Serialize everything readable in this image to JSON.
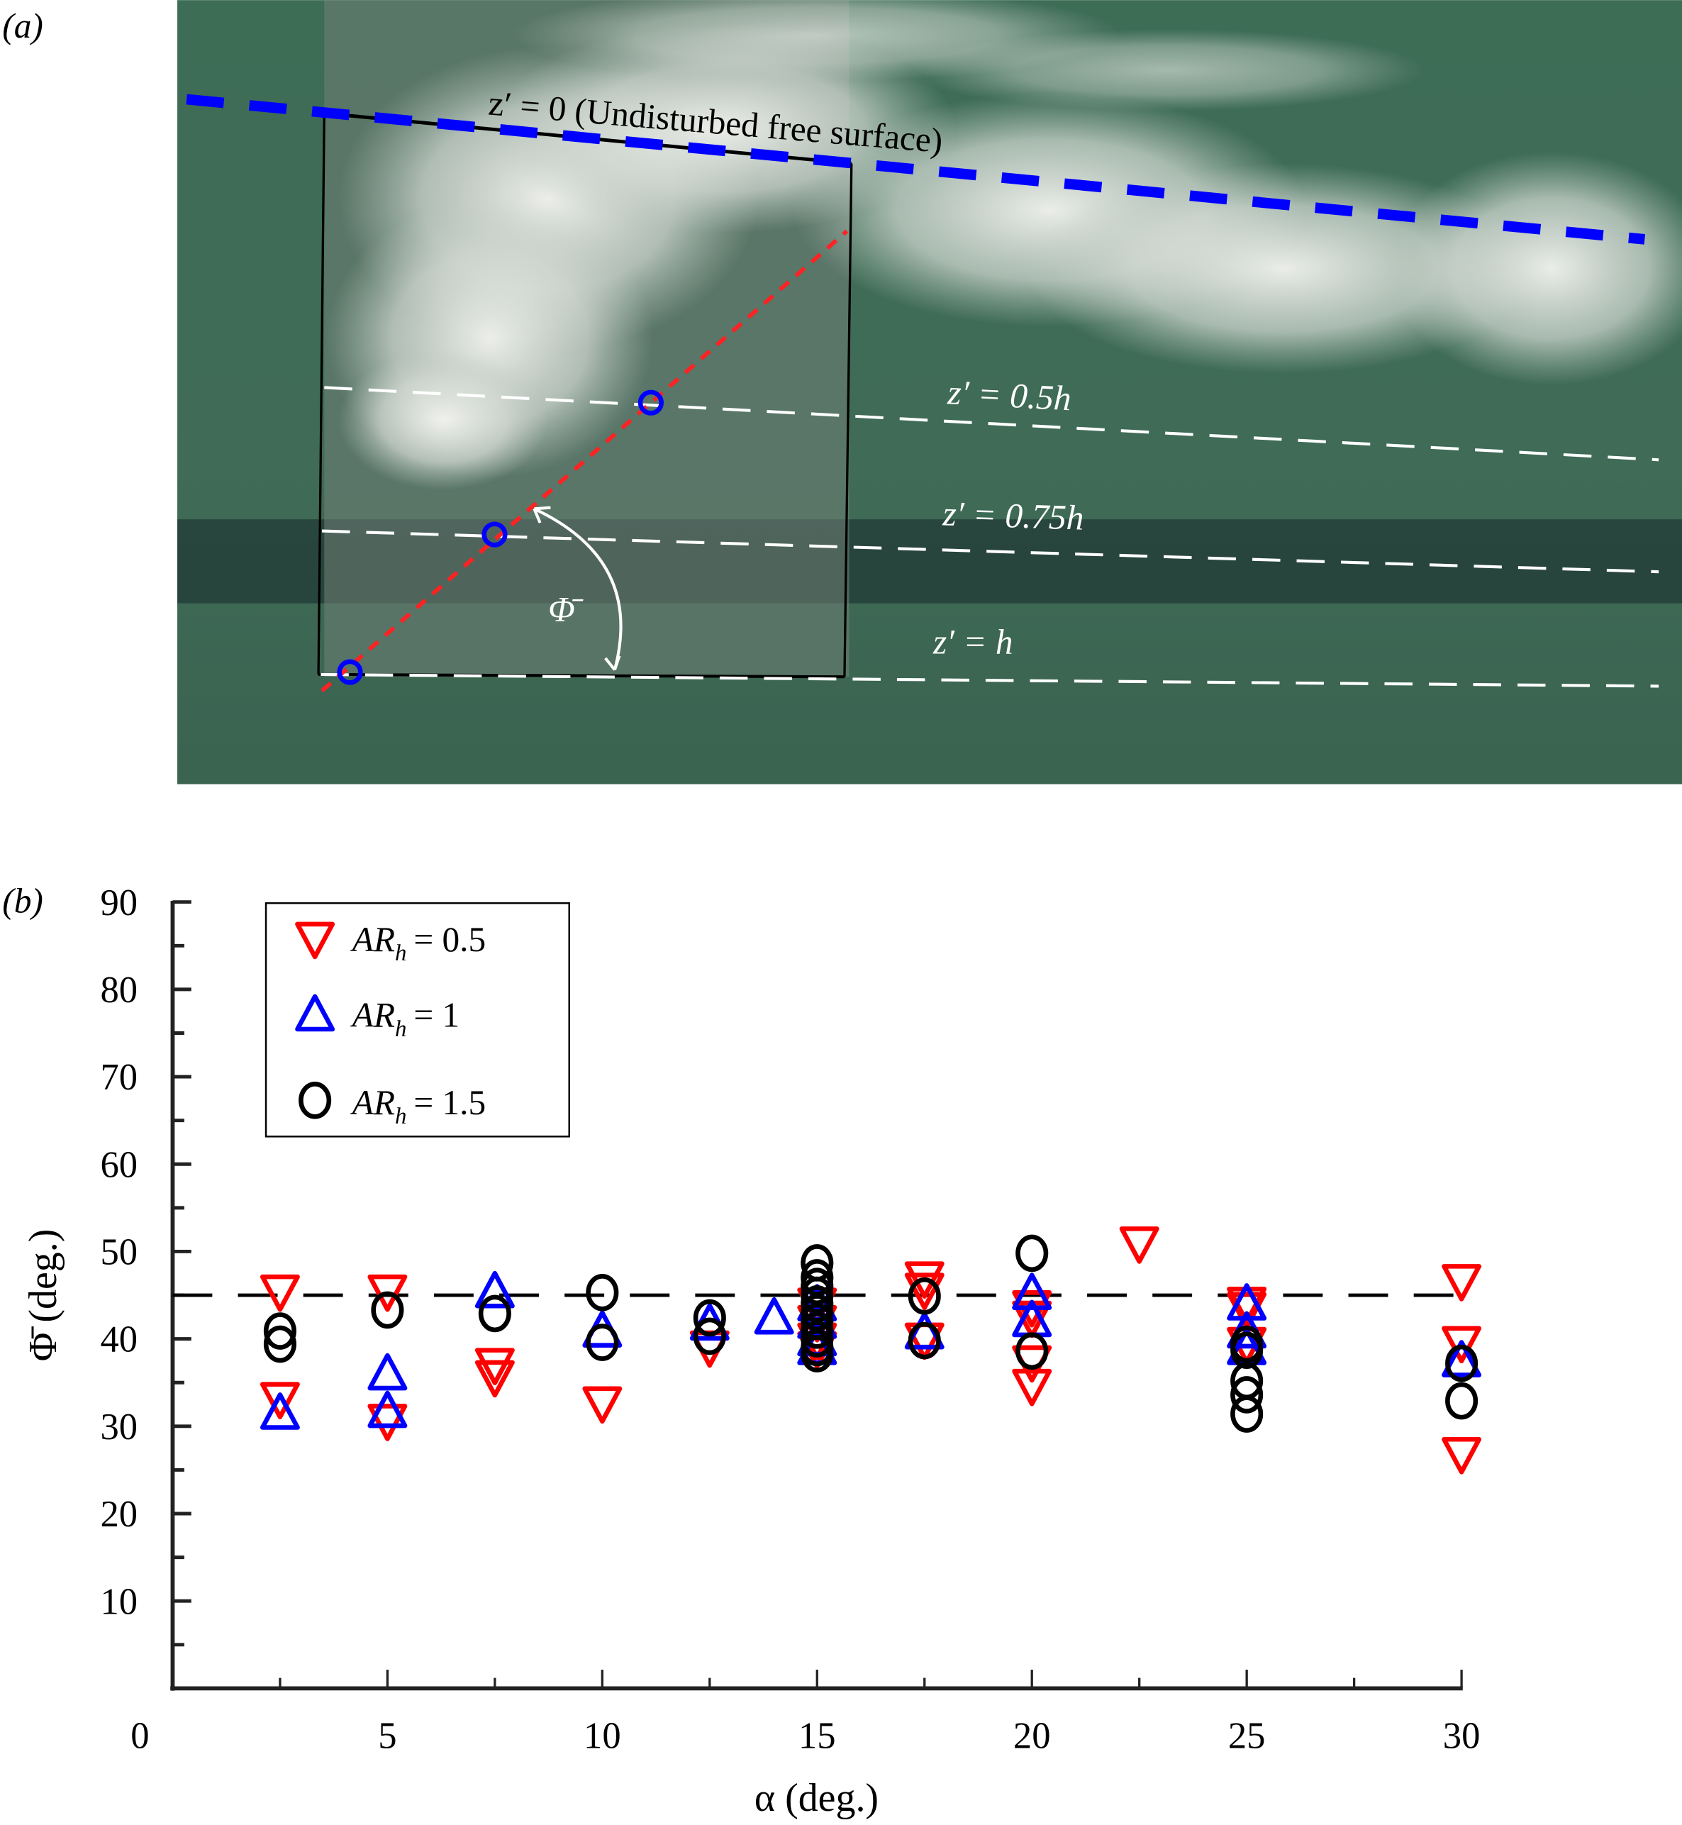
{
  "panel_a": {
    "label": "(a)",
    "annotations": {
      "surface": "z′ = 0 (Undisturbed  free  surface)",
      "z_half": "z′ = 0.5h",
      "z_three_quarter": "z′ = 0.75h",
      "z_full": "z′ = h",
      "angle": "Φ̄"
    },
    "colors": {
      "water": "#3f6a55",
      "surface_line": "#0000ff",
      "fit_line": "#ff0000",
      "depth_lines": "#ffffff",
      "points": "#0000ff"
    }
  },
  "panel_b": {
    "label": "(b)"
  },
  "chart_data": {
    "type": "scatter",
    "title": "",
    "xlabel": "α (deg.)",
    "ylabel": "Φ̄ (deg.)",
    "xlim": [
      0,
      30
    ],
    "ylim": [
      0,
      90
    ],
    "xticks": [
      0,
      5,
      10,
      15,
      20,
      25,
      30
    ],
    "yticks": [
      10,
      20,
      30,
      40,
      50,
      60,
      70,
      80,
      90
    ],
    "grid": false,
    "legend_position": "upper left",
    "reference_line": {
      "y": 45,
      "style": "dashed",
      "color": "#000000"
    },
    "series": [
      {
        "name": "AR_h = 0.5",
        "legend_label": "AR",
        "legend_sub": "h",
        "legend_value": "= 0.5",
        "marker": "triangle-down",
        "color": "#ff0000",
        "points": [
          [
            2.5,
            45.5
          ],
          [
            2.5,
            33.2
          ],
          [
            5,
            45.5
          ],
          [
            5,
            30.7
          ],
          [
            7.5,
            37.1
          ],
          [
            7.5,
            35.7
          ],
          [
            10,
            32.7
          ],
          [
            12.5,
            39.1
          ],
          [
            15,
            44
          ],
          [
            15,
            42
          ],
          [
            15,
            40
          ],
          [
            15,
            39
          ],
          [
            17.5,
            47.0
          ],
          [
            17.5,
            45.7
          ],
          [
            17.5,
            40.0
          ],
          [
            20,
            43.7
          ],
          [
            20,
            42.5
          ],
          [
            20,
            37.4
          ],
          [
            20,
            34.7
          ],
          [
            22.5,
            51.0
          ],
          [
            25,
            44.1
          ],
          [
            25,
            43.5
          ],
          [
            25,
            39.5
          ],
          [
            30,
            46.7
          ],
          [
            30,
            39.6
          ],
          [
            30,
            26.9
          ]
        ]
      },
      {
        "name": "AR_h = 1",
        "legend_label": "AR",
        "legend_sub": "h",
        "legend_value": "= 1",
        "marker": "triangle-up",
        "color": "#0000ff",
        "points": [
          [
            2.5,
            31.6
          ],
          [
            5,
            36.1
          ],
          [
            5,
            31.8
          ],
          [
            7.5,
            45.5
          ],
          [
            10,
            41.0
          ],
          [
            12.5,
            41.8
          ],
          [
            14,
            42.5
          ],
          [
            15,
            44
          ],
          [
            15,
            42
          ],
          [
            15,
            40
          ],
          [
            15,
            39
          ],
          [
            17.5,
            40.8
          ],
          [
            20,
            45.3
          ],
          [
            20,
            42.2
          ],
          [
            25,
            44.1
          ],
          [
            25,
            40.9
          ],
          [
            25,
            39.0
          ],
          [
            30,
            37.6
          ]
        ]
      },
      {
        "name": "AR_h = 1.5",
        "legend_label": "AR",
        "legend_sub": "h",
        "legend_value": "= 1.5",
        "marker": "circle",
        "color": "#000000",
        "points": [
          [
            2.5,
            40.9
          ],
          [
            2.5,
            39.4
          ],
          [
            5,
            43.3
          ],
          [
            7.5,
            42.9
          ],
          [
            10,
            45.3
          ],
          [
            10,
            39.6
          ],
          [
            12.5,
            42.4
          ],
          [
            12.5,
            40.3
          ],
          [
            15,
            48.7
          ],
          [
            15,
            47
          ],
          [
            15,
            46
          ],
          [
            15,
            45
          ],
          [
            15,
            44
          ],
          [
            15,
            43
          ],
          [
            15,
            42
          ],
          [
            15,
            41
          ],
          [
            15,
            40
          ],
          [
            15,
            39
          ],
          [
            15,
            38.3
          ],
          [
            17.5,
            44.9
          ],
          [
            17.5,
            39.8
          ],
          [
            20,
            49.8
          ],
          [
            20,
            38.6
          ],
          [
            25,
            39.4
          ],
          [
            25,
            38.7
          ],
          [
            25,
            35.2
          ],
          [
            25,
            33.6
          ],
          [
            25,
            31.4
          ],
          [
            30,
            37.2
          ],
          [
            30,
            32.9
          ]
        ]
      }
    ]
  }
}
